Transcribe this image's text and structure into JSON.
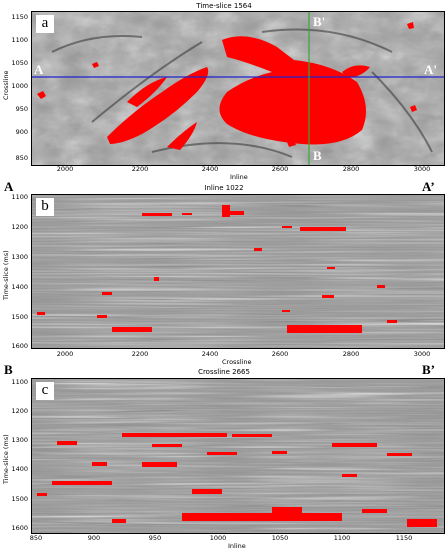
{
  "panels": {
    "a": {
      "letter": "a",
      "title": "Time-slice 1564",
      "ylabel": "Crossline",
      "xlabel": "Inline",
      "yticks": [
        "1150",
        "1100",
        "1050",
        "1000",
        "950",
        "900",
        "850"
      ],
      "xticks": [
        "2000",
        "2200",
        "2400",
        "2600",
        "2800",
        "3000"
      ],
      "left_marker": "A",
      "right_marker": "A'",
      "top_marker": "B'",
      "bottom_marker": "B"
    },
    "b": {
      "letter": "b",
      "title": "Inline 1022",
      "ylabel": "Time-slice (ms)",
      "xlabel": "Crossline",
      "yticks": [
        "1100",
        "1200",
        "1300",
        "1400",
        "1500",
        "1600"
      ],
      "xticks": [
        "2000",
        "2200",
        "2400",
        "2600",
        "2800",
        "3000"
      ],
      "left_marker": "A",
      "right_marker": "A’"
    },
    "c": {
      "letter": "c",
      "title": "Crossline 2665",
      "ylabel": "Time-slice (ms)",
      "xlabel": "Inline",
      "yticks": [
        "1100",
        "1200",
        "1300",
        "1400",
        "1500",
        "1600"
      ],
      "xticks": [
        "850",
        "900",
        "950",
        "1000",
        "1050",
        "1100",
        "1150"
      ],
      "left_marker": "B",
      "right_marker": "B’"
    }
  },
  "colors": {
    "anomaly": "#ff0000",
    "section_line_a": "#2222cc",
    "section_line_b": "#33aa33"
  }
}
